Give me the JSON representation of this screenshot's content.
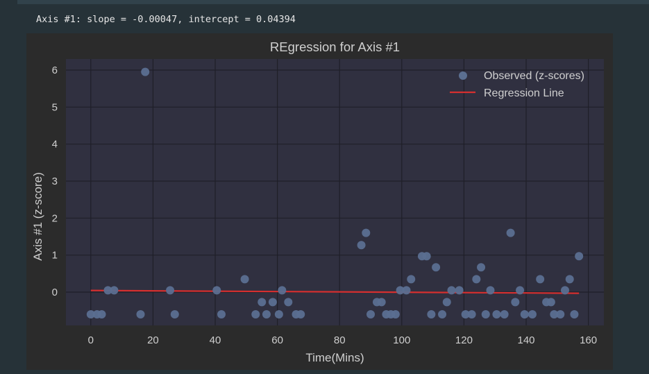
{
  "output_text": "Axis #1: slope = -0.00047, intercept = 0.04394",
  "colors": {
    "page_bg": "#263238",
    "figure_bg": "#2b2b2b",
    "plot_bg": "#303040",
    "grid": "#1f1f28",
    "point": "#5b6f91",
    "line": "#d62f2f",
    "text": "#cfcfcf"
  },
  "chart_data": {
    "type": "scatter",
    "title": "REgression for Axis #1",
    "xlabel": "Time(Mins)",
    "ylabel": "Axis #1 (z-score)",
    "xlim": [
      -8,
      165
    ],
    "ylim": [
      -0.9,
      6.3
    ],
    "xticks": [
      0,
      20,
      40,
      60,
      80,
      100,
      120,
      140,
      160
    ],
    "yticks": [
      0,
      1,
      2,
      3,
      4,
      5,
      6
    ],
    "grid": true,
    "legend_position": "top-right",
    "series": [
      {
        "name": "Observed (z-scores)",
        "kind": "scatter",
        "points": [
          [
            0,
            -0.6
          ],
          [
            2,
            -0.6
          ],
          [
            3.5,
            -0.6
          ],
          [
            5.5,
            0.05
          ],
          [
            7.5,
            0.05
          ],
          [
            16,
            -0.6
          ],
          [
            17.5,
            5.95
          ],
          [
            25.5,
            0.05
          ],
          [
            27,
            -0.6
          ],
          [
            40.5,
            0.05
          ],
          [
            42,
            -0.6
          ],
          [
            49.5,
            0.35
          ],
          [
            53,
            -0.6
          ],
          [
            55,
            -0.27
          ],
          [
            56.5,
            -0.6
          ],
          [
            58.5,
            -0.27
          ],
          [
            60.5,
            -0.6
          ],
          [
            61.5,
            0.05
          ],
          [
            63.5,
            -0.27
          ],
          [
            66,
            -0.6
          ],
          [
            67.5,
            -0.6
          ],
          [
            87,
            1.27
          ],
          [
            88.5,
            1.6
          ],
          [
            90,
            -0.6
          ],
          [
            92,
            -0.27
          ],
          [
            93.5,
            -0.27
          ],
          [
            95,
            -0.6
          ],
          [
            96.5,
            -0.6
          ],
          [
            98,
            -0.6
          ],
          [
            99.5,
            0.05
          ],
          [
            101.5,
            0.05
          ],
          [
            103,
            0.35
          ],
          [
            106.5,
            0.97
          ],
          [
            108,
            0.97
          ],
          [
            109.5,
            -0.6
          ],
          [
            111,
            0.67
          ],
          [
            113,
            -0.6
          ],
          [
            114.5,
            -0.27
          ],
          [
            116,
            0.05
          ],
          [
            118.5,
            0.05
          ],
          [
            120.5,
            -0.6
          ],
          [
            122.5,
            -0.6
          ],
          [
            124,
            0.35
          ],
          [
            125.5,
            0.67
          ],
          [
            127,
            -0.6
          ],
          [
            128.5,
            0.05
          ],
          [
            130.5,
            -0.6
          ],
          [
            133,
            -0.6
          ],
          [
            135,
            1.6
          ],
          [
            136.5,
            -0.27
          ],
          [
            138,
            0.05
          ],
          [
            139.5,
            -0.6
          ],
          [
            142,
            -0.6
          ],
          [
            144.5,
            0.35
          ],
          [
            146.5,
            -0.27
          ],
          [
            148,
            -0.27
          ],
          [
            149,
            -0.6
          ],
          [
            151,
            -0.6
          ],
          [
            152.5,
            0.05
          ],
          [
            154,
            0.35
          ],
          [
            155.5,
            -0.6
          ],
          [
            157,
            0.97
          ]
        ]
      },
      {
        "name": "Regression Line",
        "kind": "line",
        "slope": -0.00047,
        "intercept": 0.04394,
        "x_range": [
          0,
          157
        ]
      }
    ]
  }
}
